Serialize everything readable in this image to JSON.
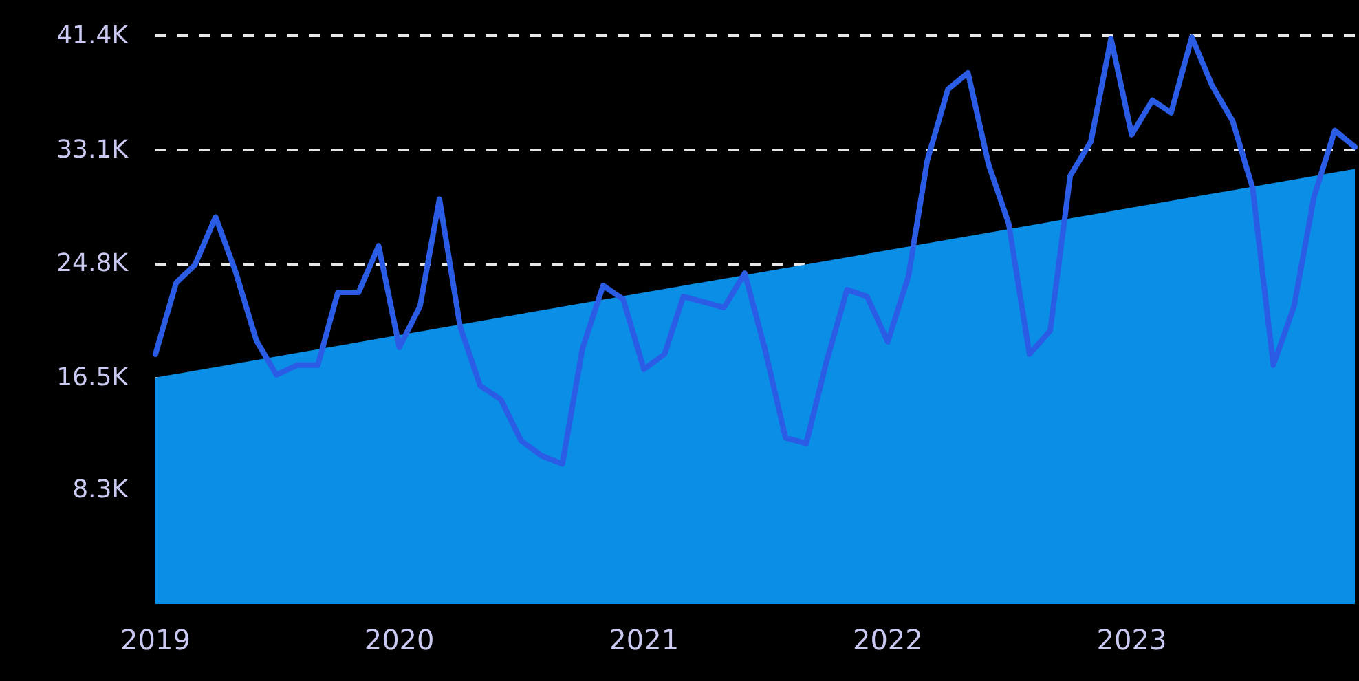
{
  "chart_data": {
    "type": "line",
    "xlim": [
      "2019-01",
      "2023-12"
    ],
    "xticks": [
      {
        "value": "2019-01",
        "label": "2019"
      },
      {
        "value": "2020-01",
        "label": "2020"
      },
      {
        "value": "2021-01",
        "label": "2021"
      },
      {
        "value": "2022-01",
        "label": "2022"
      },
      {
        "value": "2023-01",
        "label": "2023"
      }
    ],
    "ylim": [
      0,
      41400
    ],
    "yticks": [
      {
        "value": 8300,
        "label": "8.3K"
      },
      {
        "value": 16500,
        "label": "16.5K"
      },
      {
        "value": 24800,
        "label": "24.8K"
      },
      {
        "value": 33100,
        "label": "33.1K"
      },
      {
        "value": 41400,
        "label": "41.4K"
      }
    ],
    "grid": "y",
    "marker": "none",
    "line_style": "solid",
    "series": [
      {
        "type": "area",
        "color": "#0b8fe6",
        "x": [
          "2019-01",
          "2023-12"
        ],
        "values": [
          16500,
          31700
        ]
      },
      {
        "color": "#2b5ce6",
        "x": [
          "2019-01",
          "2019-02",
          "2019-03",
          "2019-04",
          "2019-05",
          "2019-06",
          "2019-07",
          "2019-08",
          "2019-09",
          "2019-10",
          "2019-11",
          "2019-12",
          "2020-01",
          "2020-02",
          "2020-03",
          "2020-04",
          "2020-05",
          "2020-06",
          "2020-07",
          "2020-08",
          "2020-09",
          "2020-10",
          "2020-11",
          "2020-12",
          "2021-01",
          "2021-02",
          "2021-03",
          "2021-04",
          "2021-05",
          "2021-06",
          "2021-07",
          "2021-08",
          "2021-09",
          "2021-10",
          "2021-11",
          "2021-12",
          "2022-01",
          "2022-02",
          "2022-03",
          "2022-04",
          "2022-05",
          "2022-06",
          "2022-07",
          "2022-08",
          "2022-09",
          "2022-10",
          "2022-11",
          "2022-12",
          "2023-01",
          "2023-02",
          "2023-03",
          "2023-04",
          "2023-05",
          "2023-06",
          "2023-07",
          "2023-08",
          "2023-09",
          "2023-10",
          "2023-11",
          "2023-12"
        ],
        "values": [
          18200,
          23400,
          24700,
          28200,
          24200,
          19200,
          16700,
          17400,
          17400,
          22700,
          22700,
          26100,
          18700,
          21700,
          29500,
          20200,
          15900,
          14900,
          11900,
          10800,
          10200,
          18600,
          23200,
          22200,
          17100,
          18200,
          22400,
          22000,
          21600,
          24100,
          18600,
          12100,
          11700,
          17600,
          22900,
          22400,
          19100,
          23900,
          32300,
          37500,
          38700,
          32000,
          27700,
          18200,
          19900,
          31200,
          33700,
          41200,
          34200,
          36700,
          35800,
          41300,
          37800,
          35200,
          30300,
          17400,
          21700,
          29700,
          34500,
          33300
        ]
      }
    ]
  }
}
